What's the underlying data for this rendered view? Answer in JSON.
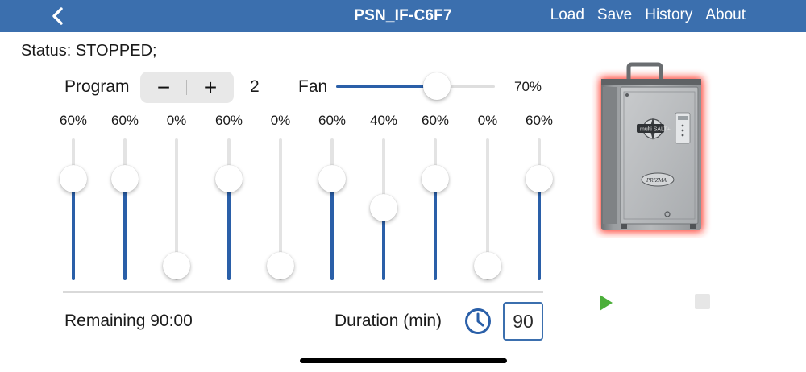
{
  "navbar": {
    "title": "PSN_IF-C6F7",
    "back_icon": "chevron-left-icon",
    "menu": [
      "Load",
      "Save",
      "History",
      "About"
    ],
    "color": "#3b6fae"
  },
  "status": {
    "text": "Status: STOPPED;"
  },
  "program": {
    "label": "Program",
    "minus": "−",
    "plus": "+",
    "value": "2"
  },
  "fan": {
    "label": "Fan",
    "value_text": "70%",
    "level": 0.7
  },
  "zones": [
    {
      "label": "60%",
      "level": 0.6
    },
    {
      "label": "60%",
      "level": 0.6
    },
    {
      "label": "0%",
      "level": 0.0
    },
    {
      "label": "60%",
      "level": 0.6
    },
    {
      "label": "0%",
      "level": 0.0
    },
    {
      "label": "60%",
      "level": 0.6
    },
    {
      "label": "40%",
      "level": 0.4
    },
    {
      "label": "60%",
      "level": 0.6
    },
    {
      "label": "0%",
      "level": 0.0
    },
    {
      "label": "60%",
      "level": 0.6
    }
  ],
  "footer": {
    "remaining": "Remaining 90:00",
    "duration_label": "Duration (min)",
    "duration_value": "90",
    "clock_icon": "clock-icon"
  },
  "device": {
    "badge": "multi SALT+",
    "brand": "PRIZMA",
    "glow_color": "#e8261c"
  },
  "controls": {
    "play_icon": "play-icon",
    "stop_icon": "stop-icon",
    "play_color": "#4caf3a",
    "stop_color": "#e6e6e6"
  },
  "colors": {
    "accent": "#2a5fa8"
  }
}
